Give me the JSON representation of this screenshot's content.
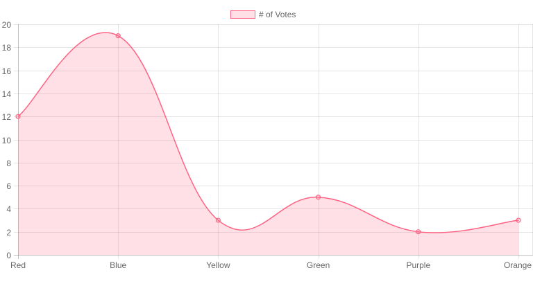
{
  "legend": {
    "label": "# of Votes",
    "fill_color": "rgba(255, 99, 132, 0.2)",
    "border_color": "#ff6384"
  },
  "chart_data": {
    "type": "line",
    "title": "",
    "xlabel": "",
    "ylabel": "",
    "categories": [
      "Red",
      "Blue",
      "Yellow",
      "Green",
      "Purple",
      "Orange"
    ],
    "series": [
      {
        "name": "# of Votes",
        "values": [
          12,
          19,
          3,
          5,
          2,
          3
        ],
        "fill": true,
        "curve": "smooth",
        "border_color": "#ff6384",
        "fill_color": "rgba(255, 99, 132, 0.2)"
      }
    ],
    "ylim": [
      0,
      20
    ],
    "y_ticks": [
      "20",
      "18",
      "16",
      "14",
      "12",
      "10",
      "8",
      "6",
      "4",
      "2",
      "0"
    ],
    "grid": true,
    "legend_position": "top"
  }
}
